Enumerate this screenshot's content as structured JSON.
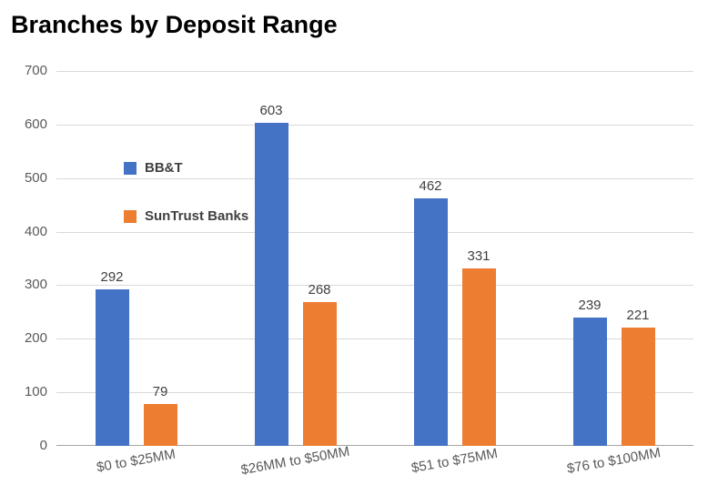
{
  "title": "Branches by Deposit Range",
  "chart_data": {
    "type": "bar",
    "title": "Branches by Deposit Range",
    "categories": [
      "$0 to $25MM",
      "$26MM to $50MM",
      "$51 to $75MM",
      "$76 to $100MM"
    ],
    "series": [
      {
        "name": "BB&T",
        "color": "#4472C4",
        "values": [
          292,
          603,
          462,
          239
        ]
      },
      {
        "name": "SunTrust Banks",
        "color": "#ED7D31",
        "values": [
          79,
          268,
          331,
          221
        ]
      }
    ],
    "xlabel": "",
    "ylabel": "",
    "ylim": [
      0,
      700
    ],
    "yticks": [
      0,
      100,
      200,
      300,
      400,
      500,
      600,
      700
    ],
    "grid": true,
    "legend_position": "top-left",
    "gridline_color": "#D9D9D9",
    "axis_line_color": "#A6A6A6",
    "axis_text_color": "#595959",
    "value_label_color": "#404040"
  }
}
